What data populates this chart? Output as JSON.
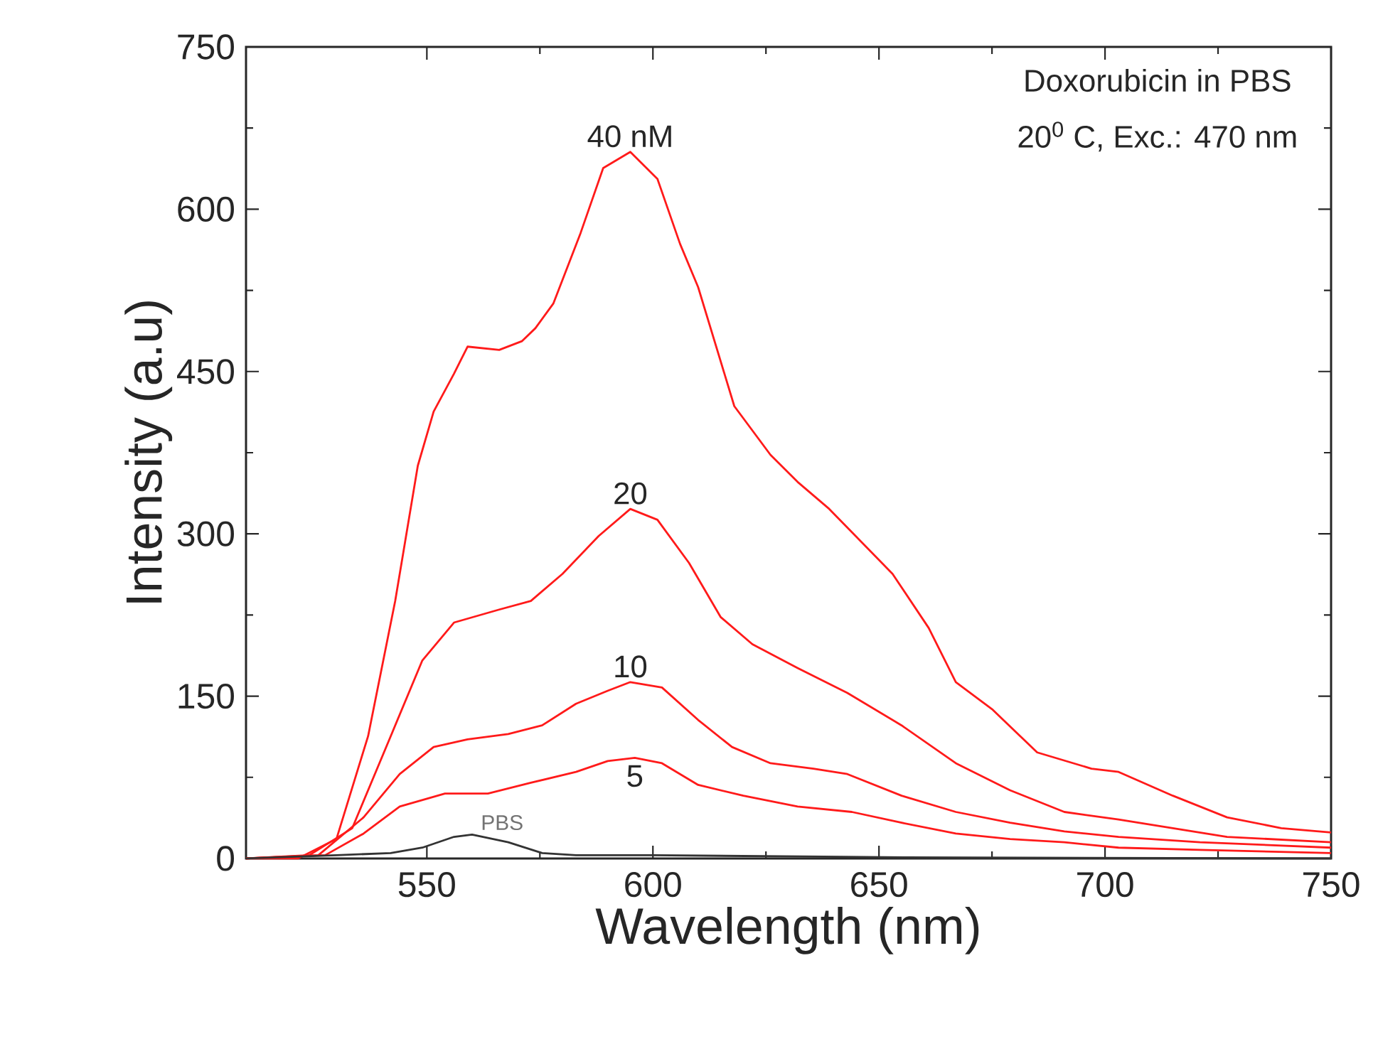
{
  "chart_data": {
    "type": "line",
    "xlabel": "Wavelength (nm)",
    "ylabel": "Intensity (a.u)",
    "xlim": [
      510,
      750
    ],
    "xticks": [
      550,
      600,
      650,
      700,
      750
    ],
    "ylim": [
      0,
      750
    ],
    "yticks": [
      0,
      150,
      300,
      450,
      600,
      750
    ],
    "series": [
      {
        "color": "#ff1a1a",
        "x": [
          510,
          521.5,
          530,
          537,
          543,
          548,
          551.5,
          556,
          559,
          566,
          571,
          574,
          578,
          584,
          589,
          595,
          601,
          606,
          610,
          618,
          626,
          632,
          639,
          646,
          653,
          661,
          667,
          675,
          685,
          697,
          703,
          715,
          727,
          739,
          750
        ],
        "values": [
          0,
          0,
          18,
          113,
          238,
          363,
          413,
          448,
          473,
          470,
          478,
          490,
          513,
          578,
          638,
          653,
          628,
          568,
          528,
          418,
          373,
          348,
          323,
          293,
          263,
          213,
          163,
          138,
          98,
          83,
          80,
          58,
          38,
          28,
          24
        ]
      },
      {
        "color": "#ff1a1a",
        "x": [
          510,
          524,
          533.5,
          542,
          549,
          556,
          566,
          573,
          580,
          588,
          595,
          601,
          608,
          615,
          622,
          632,
          643,
          655,
          667,
          679,
          691,
          703,
          715,
          727,
          750
        ],
        "values": [
          0,
          3,
          28,
          113,
          183,
          218,
          230,
          238,
          263,
          298,
          323,
          313,
          273,
          223,
          198,
          176,
          153,
          123,
          88,
          63,
          43,
          36,
          28,
          20,
          15
        ]
      },
      {
        "color": "#ff1a1a",
        "x": [
          510,
          526,
          536,
          544,
          551.5,
          559,
          568,
          575.5,
          583,
          590,
          595,
          602,
          610,
          617.5,
          626,
          635.5,
          643,
          655,
          667,
          679,
          691,
          703,
          721,
          750
        ],
        "values": [
          0,
          3,
          38,
          78,
          103,
          110,
          115,
          123,
          143,
          155,
          163,
          158,
          128,
          103,
          88,
          83,
          78,
          58,
          43,
          33,
          25,
          20,
          15,
          10
        ]
      },
      {
        "color": "#ff1a1a",
        "x": [
          510,
          527.5,
          536,
          544,
          554,
          563.5,
          573,
          583,
          590,
          596,
          602,
          610,
          620,
          632,
          644,
          655,
          667,
          679,
          691,
          703,
          721,
          750
        ],
        "values": [
          0,
          3,
          23,
          48,
          60,
          60,
          70,
          80,
          90,
          93,
          88,
          68,
          58,
          48,
          43,
          33,
          23,
          18,
          15,
          10,
          8,
          5
        ]
      },
      {
        "color": "#333333",
        "x": [
          510,
          530,
          542,
          549,
          556,
          560,
          568,
          575.5,
          583,
          600,
          656,
          750
        ],
        "values": [
          0,
          3,
          5,
          10,
          20,
          22,
          15,
          5,
          3,
          3,
          1,
          0
        ]
      }
    ],
    "annotations": [
      "40 nM",
      "20",
      "10",
      "5",
      "PBS",
      "Doxorubicin in PBS",
      "20$^{0}$ C, Exc.: 470 nm"
    ]
  }
}
